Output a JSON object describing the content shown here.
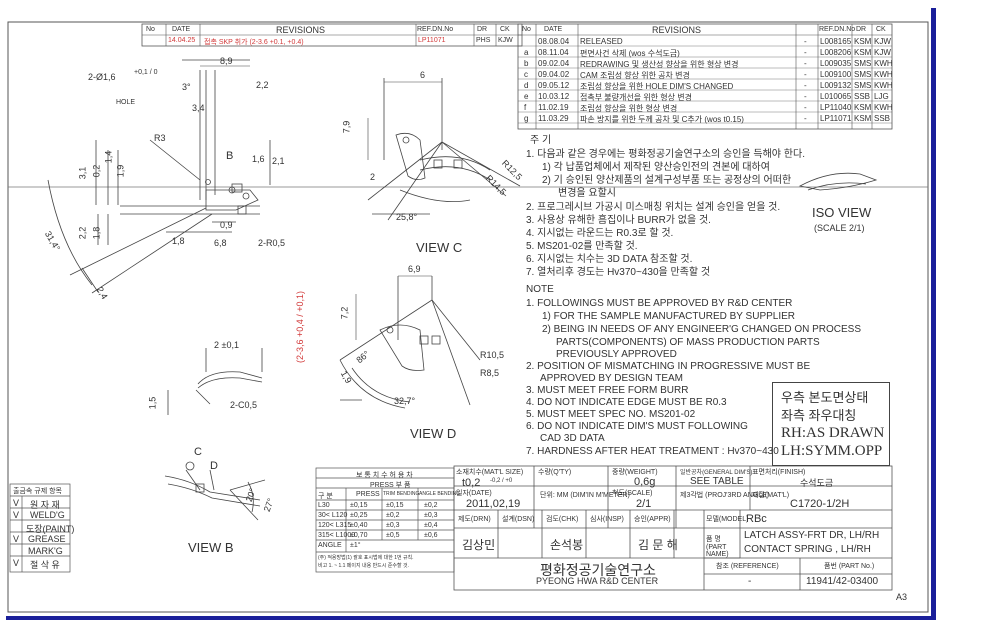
{
  "revisions_left": {
    "headers": [
      "No",
      "DATE",
      "REVISIONS",
      "REF.DN.No",
      "DR",
      "CK"
    ],
    "rows": [
      {
        "no": "",
        "date": "14.04.25",
        "text": "접촉 SKP 취가 (2-3.6 +0.1, +0.4)",
        "ref": "LP11071",
        "dr": "PHS",
        "ck": "KJW"
      }
    ]
  },
  "revisions_right": {
    "headers": [
      "No",
      "DATE",
      "REVISIONS",
      "REF.DN.No",
      "DR",
      "CK"
    ],
    "rows": [
      {
        "no": "",
        "date": "08.08.04",
        "text": "RELEASED",
        "dash": "-",
        "ref": "L008165",
        "dr": "KSM",
        "ck": "KJW"
      },
      {
        "no": "a",
        "date": "08.11.04",
        "text": "편면사건 삭제 (wos 수석도금)",
        "dash": "-",
        "ref": "L008206",
        "dr": "KSM",
        "ck": "KJW"
      },
      {
        "no": "b",
        "date": "09.02.04",
        "text": "REDRAWING 및 생산성 향상을 위한 형상 변경",
        "dash": "-",
        "ref": "L009035",
        "dr": "SMS",
        "ck": "KWH"
      },
      {
        "no": "c",
        "date": "09.04.02",
        "text": "CAM 조립성 향상 위한 공차 변경",
        "dash": "-",
        "ref": "L009100",
        "dr": "SMS",
        "ck": "KWH"
      },
      {
        "no": "d",
        "date": "09.05.12",
        "text": "조립성 향상을 위한 HOLE DIM'S CHANGED",
        "dash": "-",
        "ref": "L009132",
        "dr": "SMS",
        "ck": "KWH"
      },
      {
        "no": "e",
        "date": "10.03.12",
        "text": "접촉부 불량개선을 위한 형상 변경",
        "dash": "-",
        "ref": "L010065",
        "dr": "SSB",
        "ck": "LJG"
      },
      {
        "no": "f",
        "date": "11.02.19",
        "text": "조립성 향상을 위한 형상 변경",
        "dash": "-",
        "ref": "LP11040",
        "dr": "KSM",
        "ck": "KWH"
      },
      {
        "no": "g",
        "date": "11.03.29",
        "text": "파손 방지를 위한 두께 공차 및 C추가 (wos t0.15)",
        "dash": "-",
        "ref": "LP11071",
        "dr": "KSM",
        "ck": "SSB"
      }
    ]
  },
  "korean_notes": {
    "heading": "주 기",
    "lines": [
      "1. 다음과 같은 경우에는 평화정공기술연구소의 승인을 득해야 한다.",
      "1) 각 납품업체에서 제작된 양산승인전의 견본에 대하여",
      "2) 기 승인된 양산제품의 설계구성부품 또는 공정상의 어떠한",
      "변경을 요할시",
      "2. 프로그레시브 가공시 미스매칭 위치는 설계 승인을 얻을 것.",
      "3. 사용상 유해한 흠집이나 BURR가 없을 것.",
      "4. 지시없는 라운드는 R0.3로 할 것.",
      "5. MS201-02를 만족할 것.",
      "6. 지시없는 치수는 3D DATA 참조할 것.",
      "7. 열처리후 경도는 Hv370~430을 만족할 것"
    ]
  },
  "english_notes": {
    "heading": "NOTE",
    "lines": [
      "1. FOLLOWINGS MUST BE APPROVED BY R&D CENTER",
      "1) FOR THE SAMPLE MANUFACTURED BY SUPPLIER",
      "2) BEING IN NEEDS OF ANY ENGINEER'G CHANGED ON PROCESS",
      "PARTS(COMPONENTS) OF MASS PRODUCTION PARTS",
      "PREVIOUSLY APPROVED",
      "2. POSITION OF MISMATCHING IN PROGRESSIVE MUST BE",
      "APPROVED BY DESIGN TEAM",
      "3. MUST MEET FREE FORM BURR",
      "4. DO NOT INDICATE EDGE MUST BE R0.3",
      "5. MUST MEET SPEC NO. MS201-02",
      "6. DO NOT INDICATE DIM'S MUST FOLLOWING",
      "CAD 3D DATA",
      "7. HARDNESS AFTER HEAT TREATMENT : Hv370~430"
    ]
  },
  "side_box": {
    "line1": "우측 본도면상태",
    "line2": "좌측 좌우대칭",
    "line3": "RH:AS DRAWN",
    "line4": "LH:SYMM.OPP"
  },
  "views": {
    "iso_view": "ISO VIEW",
    "iso_scale": "(SCALE 2/1)",
    "view_b": "VIEW B",
    "view_c": "VIEW C",
    "view_d": "VIEW D",
    "letter_b": "B",
    "letter_c": "C",
    "letter_d": "D"
  },
  "dimensions": {
    "d_8_9": "8,9",
    "d_hole": "2-Ø1,6",
    "d_hole_tol": "+0,1 / 0",
    "d_hole_label": "HOLE",
    "d_3deg": "3°",
    "d_2_2": "2,2",
    "d_3_4": "3,4",
    "d_r3": "R3",
    "d_1_6": "1,6",
    "d_2_1": "2,1",
    "d_3_1": "3,1",
    "d_0_2": "0,2",
    "d_1_4": "1,4",
    "d_1_9": "1,9",
    "d_0_9": "0,9",
    "d_1_8": "1,8",
    "d_6_8": "6,8",
    "d_r0_5": "2-R0,5",
    "d_2_2b": "2,2",
    "d_1_8b": "1,8",
    "d_31_4": "31,4°",
    "d_2_4": "2,4",
    "d_2_0_1": "2 ±0,1",
    "d_2_3_6": "(2-3,6 +0,4 / +0,1)",
    "d_1_5": "1,5",
    "d_2_c0_5": "2-C0,5",
    "d_6": "6",
    "d_7_9": "7,9",
    "d_r12_5": "R12,5",
    "d_r14_5": "R14,5",
    "d_2": "2",
    "d_25_8": "25,8°",
    "d_6_9": "6,9",
    "d_7_2": "7,2",
    "d_86": "86°",
    "d_r10_5": "R10,5",
    "d_r8_5": "R8,5",
    "d_1_9b": "1,9",
    "d_32_7": "32,7°",
    "d_20": "20°",
    "d_27": "27°"
  },
  "process_table": {
    "headers": [
      "출금속 규제 항목"
    ],
    "rows": [
      {
        "mark": "V",
        "label": "원 자 재"
      },
      {
        "mark": "V",
        "label": "WELD'G"
      },
      {
        "mark": "",
        "label": "도장(PAINT)"
      },
      {
        "mark": "V",
        "label": "GREASE"
      },
      {
        "mark": "",
        "label": "MARK'G"
      },
      {
        "mark": "V",
        "label": "절 삭 유"
      }
    ]
  },
  "tolerance_table": {
    "title": "보 통 치 수 허 용 차",
    "subtitle": "PRESS 부 품",
    "headers": [
      "구 분",
      "PRESS",
      "TRIM BENDING",
      "ANGLE BENDING"
    ],
    "rows": [
      [
        "L30",
        "±0,15",
        "±0,15",
        "±0,2"
      ],
      [
        "30< L120",
        "±0,25",
        "±0,2",
        "±0,3"
      ],
      [
        "120< L315",
        "±0,40",
        "±0,3",
        "±0,4"
      ],
      [
        "315< L1000",
        "±0,70",
        "±0,5",
        "±0,6"
      ],
      [
        "ANGLE",
        "±1°",
        "",
        ""
      ]
    ],
    "footnote_1": "(주) 적용방법(1) 괄호 표시법에 대한 1번 규칙.",
    "footnote_2": "비고 1. ~ 1.1 페이지 내용 반드시 준수할 것."
  },
  "title_block": {
    "mat_size_label": "소재치수(MAT'L SIZE)",
    "mat_size": "t0,2",
    "mat_size_tol": "-0,2 / +0",
    "qty_label": "수량(Q'TY)",
    "qty": "",
    "weight_label": "중량(WEIGHT)",
    "weight": "0,6g",
    "gen_label": "일반공차(GENERAL DIM'S)",
    "gen": "SEE TABLE",
    "finish_label": "표면처리(FINISH)",
    "finish": "수석도금",
    "date_label": "일자(DATE)",
    "date": "2011,02,19",
    "unit_label": "단위: MM (DIM'IN M'METER)",
    "scale_label": "척도(SCALE)",
    "scale": "2/1",
    "proj_label": "제3각법 (PROJ'3RD ANGLE)",
    "material_label": "재질(MAT'L)",
    "material": "C1720-1/2H",
    "drn_label": "제도(DRN)",
    "dsn_label": "설계(DSN)",
    "chk_label": "검도(CHK)",
    "insp_label": "심사(INSP)",
    "appr_label": "승인(APPR)",
    "drn_name": "김상민",
    "chk_name": "손석봉",
    "appr_name": "김 문 해",
    "model_label": "모델(MODEL)",
    "model": "RBc",
    "part_name_label": "품 명 (PART NAME)",
    "part_name_1": "LATCH ASSY-FRT DR, LH/RH",
    "part_name_2": "CONTACT SPRING , LH/RH",
    "company_kor": "평화정공기술연구소",
    "company_eng": "PYEONG HWA R&D CENTER",
    "reference_label": "참조 (REFERENCE)",
    "reference": "-",
    "part_no_label": "품번 (PART No.)",
    "part_no": "11941/42-03400",
    "sheet_size": "A3"
  },
  "colors": {
    "frame": "#1a1f9a",
    "ink": "#333333",
    "red_ink": "#d23a3a"
  }
}
